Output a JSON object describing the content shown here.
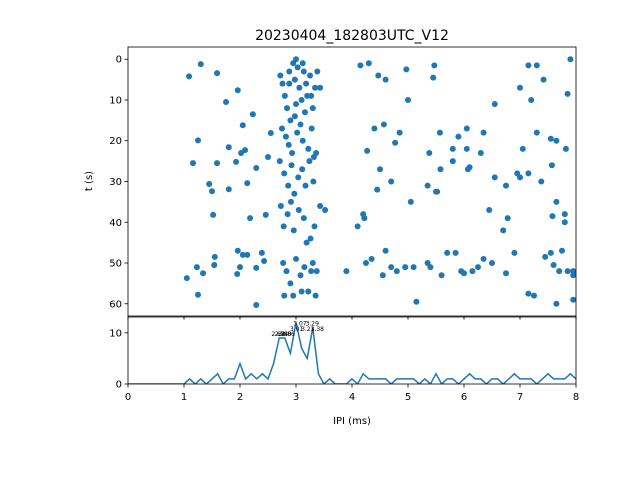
{
  "chart_data": [
    {
      "type": "scatter",
      "title": "20230404_182803UTC_V12",
      "ylabel": "t (s)",
      "color": "#1f77b4",
      "xlim": [
        0,
        8
      ],
      "ylim": [
        63,
        -3
      ],
      "yticks": [
        0,
        10,
        20,
        30,
        40,
        50,
        60
      ],
      "x": [
        1.09,
        1.3,
        1.59,
        1.75,
        1.96,
        1.25,
        1.16,
        1.59,
        1.8,
        2.02,
        2.05,
        2.09,
        1.93,
        2.13,
        1.8,
        1.45,
        1.5,
        1.52,
        2.18,
        2.29,
        2.5,
        2.55,
        2.23,
        1.05,
        1.25,
        1.23,
        1.34,
        1.55,
        1.54,
        1.96,
        2.05,
        2.13,
        1.95,
        2.0,
        2.29,
        2.29,
        2.39,
        2.43,
        2.46,
        2.72,
        2.76,
        2.8,
        2.84,
        2.88,
        2.9,
        2.95,
        2.98,
        3.0,
        3.03,
        3.06,
        3.1,
        3.14,
        3.18,
        3.2,
        3.25,
        3.3,
        3.34,
        3.38,
        2.75,
        2.82,
        2.87,
        2.93,
        2.98,
        3.02,
        3.08,
        3.12,
        3.16,
        3.22,
        3.28,
        3.32,
        2.71,
        2.79,
        2.86,
        2.92,
        2.97,
        3.04,
        3.11,
        3.17,
        3.24,
        3.31,
        3.36,
        2.73,
        2.78,
        2.85,
        2.91,
        2.96,
        3.05,
        3.14,
        3.26,
        3.33,
        3.43,
        3.52,
        2.77,
        2.83,
        2.9,
        3.0,
        3.08,
        3.15,
        3.22,
        3.3,
        3.37,
        2.79,
        2.95,
        3.1,
        3.35,
        2.88,
        3.0,
        3.12,
        3.27,
        3.43,
        3.19,
        3.27,
        4.15,
        4.3,
        4.47,
        4.6,
        4.97,
        5.47,
        5.45,
        7.15,
        7.3,
        7.9,
        7.42,
        7.0,
        7.85,
        7.2,
        6.55,
        5.0,
        4.1,
        4.2,
        4.22,
        4.27,
        4.4,
        4.45,
        4.5,
        4.57,
        4.77,
        4.7,
        4.85,
        5.05,
        5.35,
        5.52,
        5.5,
        5.57,
        5.58,
        5.38,
        5.8,
        5.8,
        5.9,
        6.05,
        6.05,
        6.1,
        6.07,
        6.3,
        6.35,
        6.45,
        6.55,
        6.7,
        6.75,
        6.78,
        6.95,
        7.05,
        7.0,
        7.15,
        7.3,
        7.38,
        7.55,
        7.57,
        7.58,
        7.65,
        7.65,
        7.82,
        7.8,
        7.8,
        4.25,
        4.35,
        4.55,
        4.7,
        4.8,
        4.95,
        5.1,
        5.15,
        5.35,
        5.4,
        5.6,
        5.7,
        5.85,
        5.95,
        6.0,
        6.15,
        6.25,
        6.35,
        6.5,
        6.75,
        6.9,
        7.15,
        7.25,
        7.45,
        7.55,
        7.6,
        7.65,
        7.7,
        7.85,
        7.95,
        7.95,
        7.75,
        7.95,
        4.6,
        3.9
      ],
      "values": [
        4.2,
        1.2,
        3.4,
        10.5,
        7.6,
        19.9,
        25.5,
        25.5,
        21.6,
        23,
        16.2,
        22.3,
        25.2,
        30.4,
        31.9,
        30.6,
        32.4,
        38.2,
        39,
        26.7,
        24,
        18.1,
        13.5,
        53.7,
        57.8,
        51,
        52.5,
        48.5,
        50.5,
        47,
        48,
        48,
        52.7,
        51,
        51.2,
        60.3,
        47.5,
        49.5,
        38.2,
        4,
        6,
        9,
        12,
        3,
        15,
        1,
        5,
        0,
        2,
        7,
        10,
        3,
        6,
        9,
        4,
        12,
        7,
        3,
        17,
        19,
        21,
        23,
        14,
        18,
        16,
        20,
        13,
        22,
        17,
        24,
        25,
        28,
        31,
        26,
        33,
        29,
        27,
        31,
        25,
        30,
        23,
        36,
        41,
        38,
        35,
        42,
        37,
        39,
        44,
        41,
        36,
        37,
        50,
        52,
        55,
        49,
        53,
        51,
        57,
        50,
        52,
        58,
        58,
        57,
        58,
        6,
        11,
        1,
        9,
        7,
        45,
        52,
        1.5,
        1,
        4,
        5,
        2.5,
        1.5,
        4.5,
        1.5,
        1.5,
        0,
        5,
        7,
        8.5,
        10,
        11,
        10,
        41,
        38,
        39,
        22.5,
        17,
        32,
        27,
        16,
        20.5,
        30,
        18,
        35,
        31,
        32.5,
        32.5,
        18,
        27,
        23,
        25,
        22,
        19,
        17,
        22,
        26.5,
        27,
        23,
        18,
        37,
        29,
        42,
        31,
        39,
        28,
        22,
        29,
        28,
        18,
        30,
        19.5,
        26,
        38.5,
        20,
        35,
        22,
        38,
        40,
        50,
        49,
        53,
        51,
        52,
        51,
        51,
        59.5,
        50,
        51,
        53,
        47.5,
        47.5,
        52,
        52.5,
        52,
        51,
        49,
        50,
        52.5,
        47.5,
        57.5,
        58,
        48.5,
        47.5,
        50.5,
        60,
        52,
        52,
        53,
        52,
        47,
        59,
        47,
        52
      ]
    },
    {
      "type": "line",
      "xlabel": "IPI (ms)",
      "color": "#1f77b4",
      "xlim": [
        0,
        8
      ],
      "ylim": [
        0,
        13.1
      ],
      "xticks": [
        0,
        1,
        2,
        3,
        4,
        5,
        6,
        7,
        8
      ],
      "yticks": [
        0,
        10
      ],
      "x": [
        0,
        0.1,
        0.2,
        0.3,
        0.4,
        0.5,
        0.6,
        0.7,
        0.8,
        0.9,
        1.0,
        1.1,
        1.2,
        1.3,
        1.4,
        1.5,
        1.6,
        1.7,
        1.8,
        1.9,
        2.0,
        2.1,
        2.2,
        2.3,
        2.4,
        2.5,
        2.6,
        2.7,
        2.8,
        2.9,
        3.0,
        3.1,
        3.2,
        3.3,
        3.4,
        3.5,
        3.6,
        3.7,
        3.8,
        3.9,
        4.0,
        4.1,
        4.2,
        4.3,
        4.4,
        4.5,
        4.6,
        4.7,
        4.8,
        4.9,
        5.0,
        5.1,
        5.2,
        5.3,
        5.4,
        5.5,
        5.6,
        5.7,
        5.8,
        5.9,
        6.0,
        6.1,
        6.2,
        6.3,
        6.4,
        6.5,
        6.6,
        6.7,
        6.8,
        6.9,
        7.0,
        7.1,
        7.2,
        7.3,
        7.4,
        7.5,
        7.6,
        7.7,
        7.8,
        7.9,
        8.0
      ],
      "values": [
        0,
        0,
        0,
        0,
        0,
        0,
        0,
        0,
        0,
        0,
        0,
        1,
        0,
        1,
        0,
        1,
        2,
        0,
        1,
        1,
        4,
        1,
        2,
        1,
        2,
        1,
        4,
        9,
        9,
        6,
        12,
        7,
        5,
        11,
        2,
        0,
        1,
        0,
        0,
        0,
        1,
        0,
        2,
        1,
        1,
        1,
        1,
        0,
        1,
        1,
        1,
        1,
        0,
        1,
        0,
        2,
        0,
        1,
        1,
        0,
        1,
        2,
        1,
        1,
        0,
        1,
        1,
        0,
        1,
        2,
        1,
        1,
        1,
        0,
        1,
        2,
        1,
        1,
        1,
        2,
        1
      ],
      "annotations": [
        {
          "text": "2.68",
          "x": 2.68,
          "y": 9
        },
        {
          "text": "2.74",
          "x": 2.74,
          "y": 9
        },
        {
          "text": "2.80",
          "x": 2.8,
          "y": 9
        },
        {
          "text": "2.86",
          "x": 2.86,
          "y": 9
        },
        {
          "text": "3.01",
          "x": 3.01,
          "y": 10
        },
        {
          "text": "3.07",
          "x": 3.07,
          "y": 11
        },
        {
          "text": "3.21",
          "x": 3.21,
          "y": 10
        },
        {
          "text": "3.29",
          "x": 3.29,
          "y": 11
        },
        {
          "text": "3.38",
          "x": 3.38,
          "y": 10
        }
      ]
    }
  ]
}
